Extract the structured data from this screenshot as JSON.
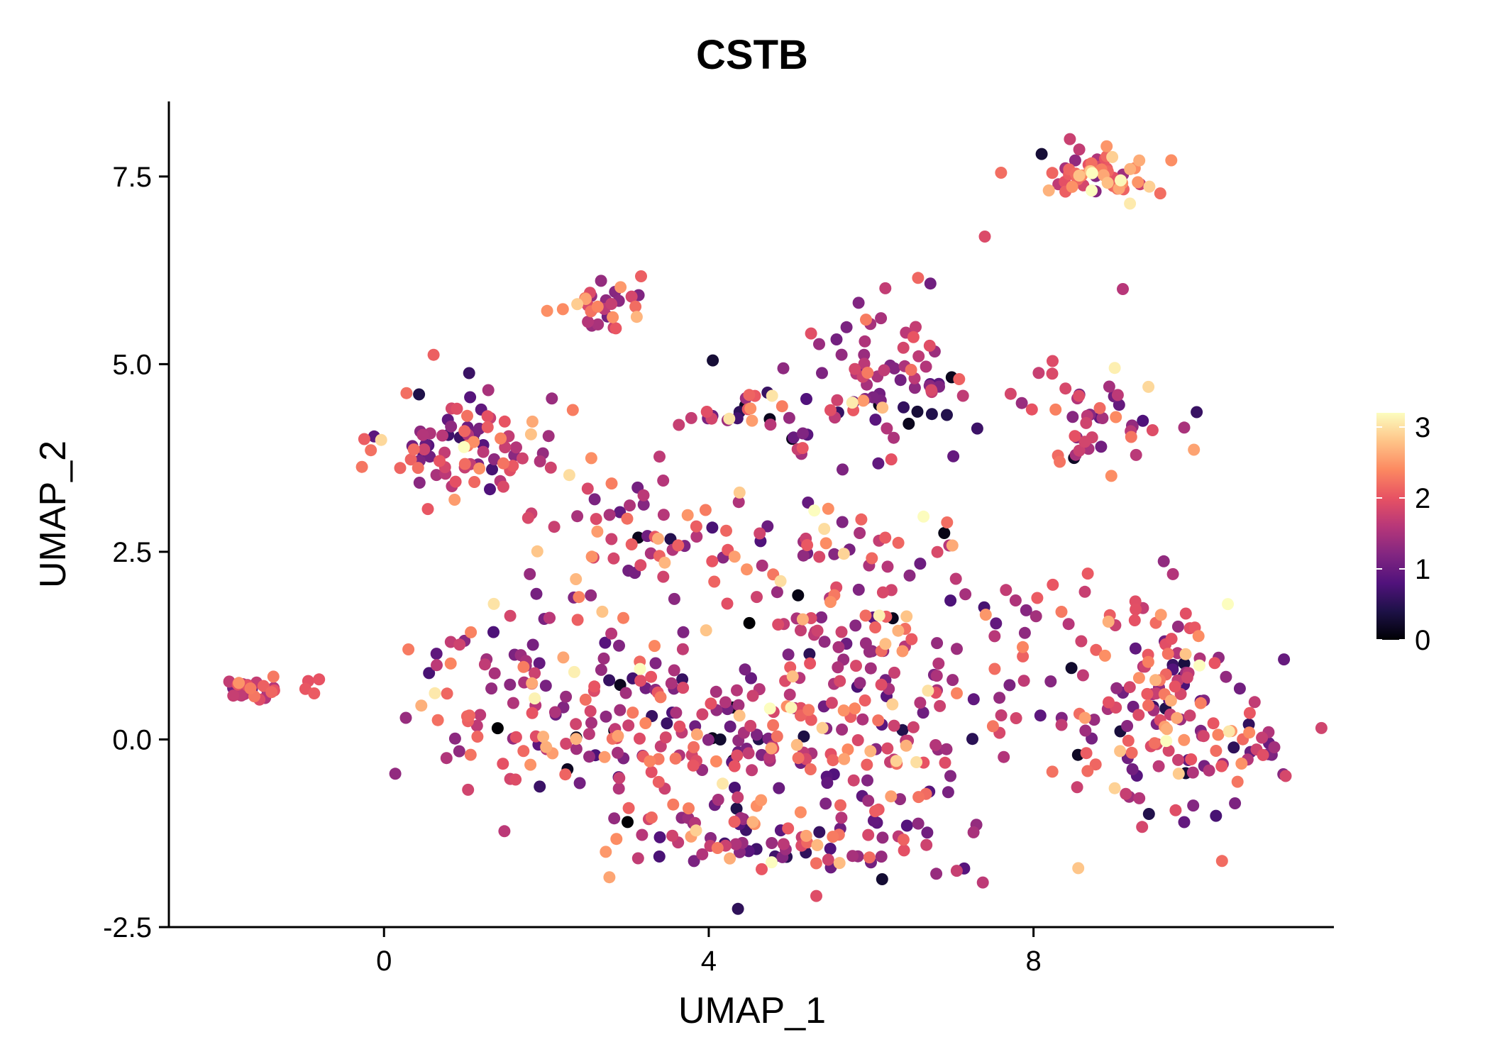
{
  "chart_data": {
    "type": "scatter",
    "title": "CSTB",
    "xlabel": "UMAP_1",
    "ylabel": "UMAP_2",
    "xlim": [
      -2.65,
      11.7
    ],
    "ylim": [
      -2.5,
      8.5
    ],
    "x_ticks": [
      0,
      4,
      8
    ],
    "y_ticks": [
      -2.5,
      0.0,
      2.5,
      5.0,
      7.5
    ],
    "y_tick_labels": [
      "-2.5",
      "0.0",
      "2.5",
      "5.0",
      "7.5"
    ],
    "legend": {
      "placement": "right",
      "min": 0,
      "max": 3.2,
      "ticks": [
        0,
        1,
        2,
        3
      ],
      "colormap": [
        "#000004",
        "#1d1147",
        "#51127c",
        "#822681",
        "#b73779",
        "#e75263",
        "#fc8961",
        "#fec488",
        "#fcfdbf"
      ]
    },
    "clusters": [
      {
        "name": "left_tiny",
        "cx": -1.65,
        "cy": 0.65,
        "sx": 0.2,
        "sy": 0.1,
        "n": 22,
        "mean": 1.9,
        "sd": 0.4
      },
      {
        "name": "left_tiny_tail",
        "cx": -1.0,
        "cy": 0.72,
        "sx": 0.15,
        "sy": 0.06,
        "n": 4,
        "mean": 2.0,
        "sd": 0.3
      },
      {
        "name": "upper_left_blob",
        "cx": 1.05,
        "cy": 3.9,
        "sx": 0.5,
        "sy": 0.38,
        "n": 85,
        "mean": 1.6,
        "sd": 0.65
      },
      {
        "name": "small_top",
        "cx": 2.8,
        "cy": 5.8,
        "sx": 0.28,
        "sy": 0.22,
        "n": 30,
        "mean": 1.8,
        "sd": 0.6
      },
      {
        "name": "center_top",
        "cx": 4.5,
        "cy": 4.3,
        "sx": 0.45,
        "sy": 0.2,
        "n": 26,
        "mean": 1.4,
        "sd": 0.6
      },
      {
        "name": "mid_top_arc",
        "cx": 6.1,
        "cy": 4.8,
        "sx": 0.55,
        "sy": 0.65,
        "n": 80,
        "mean": 1.5,
        "sd": 0.6
      },
      {
        "name": "top_right",
        "cx": 8.9,
        "cy": 7.55,
        "sx": 0.42,
        "sy": 0.16,
        "n": 55,
        "mean": 2.2,
        "sd": 0.55
      },
      {
        "name": "right_mid",
        "cx": 8.8,
        "cy": 4.2,
        "sx": 0.4,
        "sy": 0.38,
        "n": 45,
        "mean": 1.9,
        "sd": 0.6
      },
      {
        "name": "center_mid",
        "cx": 3.3,
        "cy": 2.8,
        "sx": 0.8,
        "sy": 0.55,
        "n": 60,
        "mean": 1.7,
        "sd": 0.6
      },
      {
        "name": "center_right_mid",
        "cx": 5.8,
        "cy": 2.2,
        "sx": 0.75,
        "sy": 0.55,
        "n": 55,
        "mean": 1.8,
        "sd": 0.55
      },
      {
        "name": "main_lower_left",
        "cx": 2.0,
        "cy": 0.7,
        "sx": 0.75,
        "sy": 0.7,
        "n": 110,
        "mean": 1.7,
        "sd": 0.6
      },
      {
        "name": "main_lower_center",
        "cx": 4.2,
        "cy": 0.1,
        "sx": 1.0,
        "sy": 0.85,
        "n": 150,
        "mean": 1.6,
        "sd": 0.65
      },
      {
        "name": "main_lower_right",
        "cx": 6.0,
        "cy": 0.2,
        "sx": 0.8,
        "sy": 0.95,
        "n": 120,
        "mean": 1.8,
        "sd": 0.6
      },
      {
        "name": "bottom_arc",
        "cx": 4.9,
        "cy": -1.35,
        "sx": 1.1,
        "sy": 0.3,
        "n": 70,
        "mean": 1.6,
        "sd": 0.65
      },
      {
        "name": "bridge",
        "cx": 7.6,
        "cy": 1.7,
        "sx": 0.5,
        "sy": 0.3,
        "n": 14,
        "mean": 1.6,
        "sd": 0.5
      },
      {
        "name": "right_cluster",
        "cx": 9.6,
        "cy": 0.35,
        "sx": 0.65,
        "sy": 0.75,
        "n": 150,
        "mean": 1.8,
        "sd": 0.6
      },
      {
        "name": "right_cluster_tail",
        "cx": 10.6,
        "cy": -0.2,
        "sx": 0.3,
        "sy": 0.25,
        "n": 18,
        "mean": 1.9,
        "sd": 0.5
      }
    ],
    "explicit_points": [
      {
        "x": 4.5,
        "y": 1.55,
        "v": 0.0
      },
      {
        "x": 1.4,
        "y": 0.15,
        "v": 0.0
      },
      {
        "x": 3.0,
        "y": -1.1,
        "v": 0.0
      },
      {
        "x": 4.3,
        "y": -0.28,
        "v": 0.0
      },
      {
        "x": 5.1,
        "y": 1.92,
        "v": 0.1
      },
      {
        "x": 6.9,
        "y": 2.75,
        "v": 0.1
      },
      {
        "x": 8.5,
        "y": 3.75,
        "v": 0.2
      },
      {
        "x": 8.1,
        "y": 7.8,
        "v": 0.3
      },
      {
        "x": 4.05,
        "y": 5.05,
        "v": 0.3
      },
      {
        "x": 4.45,
        "y": 4.45,
        "v": 0.2
      },
      {
        "x": 9.0,
        "y": 4.95,
        "v": 3.1
      },
      {
        "x": 7.6,
        "y": 7.55,
        "v": 2.2
      },
      {
        "x": 7.4,
        "y": 6.7,
        "v": 1.9
      },
      {
        "x": 9.1,
        "y": 6.0,
        "v": 1.6
      },
      {
        "x": 0.3,
        "y": 1.2,
        "v": 2.3
      },
      {
        "x": -0.8,
        "y": 0.8,
        "v": 2.0
      },
      {
        "x": 10.9,
        "y": -0.05,
        "v": 1.0
      },
      {
        "x": 5.3,
        "y": 3.05,
        "v": 3.2
      },
      {
        "x": 6.1,
        "y": 1.65,
        "v": 3.1
      },
      {
        "x": 6.7,
        "y": 0.65,
        "v": 3.0
      },
      {
        "x": 9.0,
        "y": -0.65,
        "v": 2.9
      }
    ]
  }
}
